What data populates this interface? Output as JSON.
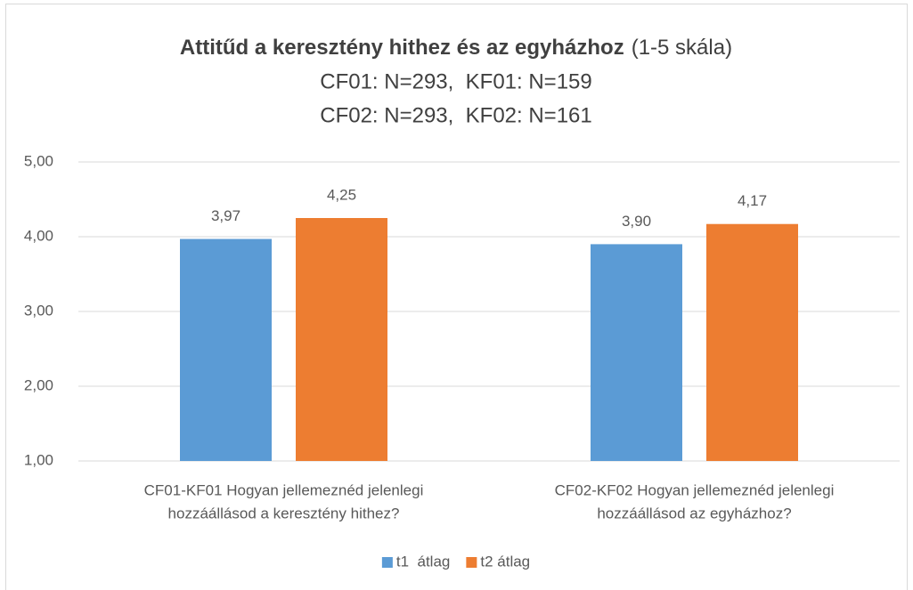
{
  "chart_data": {
    "type": "bar",
    "title": "Attitűd a keresztény hithez és az egyházhoz",
    "title_note": "(1-5 skála)",
    "subtitle": [
      "CF01: N=293,  KF01: N=159",
      "CF02: N=293,  KF02: N=161"
    ],
    "categories": [
      [
        "CF01-KF01 Hogyan jellemeznéd jelenlegi",
        "hozzáállásod a keresztény hithez?"
      ],
      [
        "CF02-KF02 Hogyan jellemeznéd jelenlegi",
        "hozzáállásod az egyházhoz?"
      ]
    ],
    "series": [
      {
        "name": "t1  átlag",
        "color": "#5b9bd5",
        "values": [
          3.97,
          3.9
        ],
        "value_labels": [
          "3,97",
          "3,90"
        ]
      },
      {
        "name": "t2 átlag",
        "color": "#ed7d31",
        "values": [
          4.25,
          4.17
        ],
        "value_labels": [
          "4,25",
          "4,17"
        ]
      }
    ],
    "ylim": [
      1,
      5
    ],
    "yticks": [
      {
        "value": 1,
        "label": "1,00"
      },
      {
        "value": 2,
        "label": "2,00"
      },
      {
        "value": 3,
        "label": "3,00"
      },
      {
        "value": 4,
        "label": "4,00"
      },
      {
        "value": 5,
        "label": "5,00"
      }
    ],
    "grid": true,
    "legend": "bottom"
  }
}
